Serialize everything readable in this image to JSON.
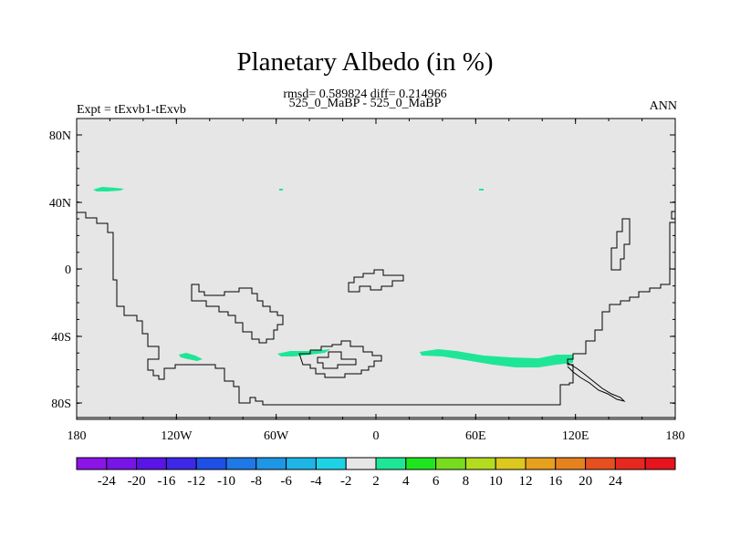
{
  "title": "Planetary Albedo (in %)",
  "stats": "rmsd= 0.589824 diff= 0.214966",
  "subtitle": "525_0_MaBP - 525_0_MaBP",
  "experiment": "Expt = tExvb1-tExvb",
  "season": "ANN",
  "map": {
    "background_color": "#e6e6e6",
    "lat_ticks": [
      "80N",
      "40N",
      "0",
      "40S",
      "80S"
    ],
    "lon_ticks": [
      "180",
      "120W",
      "60W",
      "0",
      "60E",
      "120E",
      "180"
    ]
  },
  "colorbar": {
    "colors": [
      "#8c14e6",
      "#7814e6",
      "#5a14e6",
      "#3c28e6",
      "#1e50e6",
      "#1e78e6",
      "#1e96e6",
      "#1eb4e6",
      "#1ed2e6",
      "#e6e6e6",
      "#1ee696",
      "#1ee61e",
      "#78dc1e",
      "#b4dc1e",
      "#dcc81e",
      "#e6a01e",
      "#e6821e",
      "#e6501e",
      "#e6281e",
      "#e6141e"
    ],
    "labels": [
      "-24",
      "-20",
      "-16",
      "-12",
      "-10",
      "-8",
      "-6",
      "-4",
      "-2",
      "2",
      "4",
      "6",
      "8",
      "10",
      "12",
      "16",
      "20",
      "24"
    ]
  },
  "anomaly_color": "#1ee696"
}
